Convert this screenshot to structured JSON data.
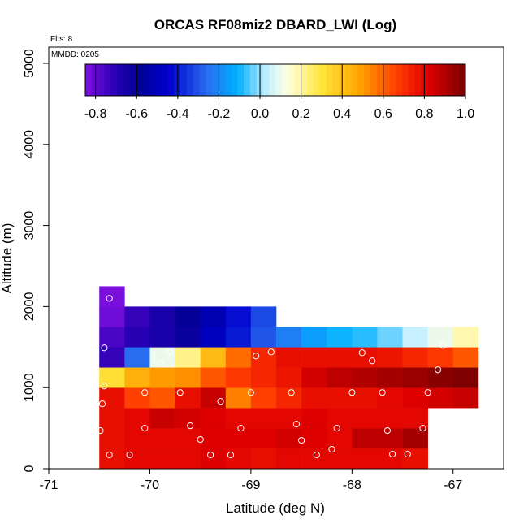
{
  "chart_data": {
    "type": "heatmap",
    "title": "ORCAS RF08miz2 DBARD_LWI (Log)",
    "xlabel": "Latitude (deg N)",
    "ylabel": "Altitude (m)",
    "xlim": [
      -71,
      -66.5
    ],
    "ylim": [
      0,
      5200
    ],
    "x_ticks": [
      -71,
      -70,
      -69,
      -68,
      -67
    ],
    "y_ticks": [
      0,
      1000,
      2000,
      3000,
      4000,
      5000
    ],
    "x_tick_labels": [
      "-71",
      "-70",
      "-69",
      "-68",
      "-67"
    ],
    "y_tick_labels": [
      "0",
      "1000",
      "2000",
      "3000",
      "4000",
      "5000"
    ],
    "annotations": {
      "flights": "Flts: 8",
      "date": "MMDD: 0205"
    },
    "colorbar": {
      "min": -0.85,
      "max": 1.0,
      "ticks": [
        -0.8,
        -0.6,
        -0.4,
        -0.2,
        0.0,
        0.2,
        0.4,
        0.6,
        0.8,
        1.0
      ],
      "tick_labels": [
        "-0.8",
        "-0.6",
        "-0.4",
        "-0.2",
        "0.0",
        "0.2",
        "0.4",
        "0.6",
        "0.8",
        "1.0"
      ]
    },
    "bin_width_deg": 0.25,
    "bin_height_m": 250,
    "columns_lat_start": [
      -70.5,
      -70.25,
      -70.0,
      -69.75,
      -69.5,
      -69.25,
      -69.0,
      -68.75,
      -68.5,
      -68.25,
      -68.0,
      -67.75,
      -67.5,
      -67.25,
      -67.0
    ],
    "rows_alt_start": [
      0,
      250,
      500,
      750,
      1000,
      1250,
      1500,
      1750,
      2000
    ],
    "cells": [
      {
        "row": 0,
        "values": [
          0.78,
          0.8,
          0.8,
          0.8,
          0.82,
          0.8,
          0.78,
          0.8,
          0.8,
          0.8,
          0.8,
          0.8,
          0.78,
          null,
          null
        ]
      },
      {
        "row": 1,
        "values": [
          0.78,
          0.8,
          0.8,
          0.8,
          0.82,
          0.82,
          0.82,
          0.84,
          0.82,
          0.8,
          0.88,
          0.88,
          0.92,
          null,
          null
        ]
      },
      {
        "row": 2,
        "values": [
          0.78,
          0.8,
          0.86,
          0.84,
          0.82,
          0.8,
          0.8,
          0.8,
          0.82,
          0.8,
          0.8,
          0.8,
          0.8,
          null,
          null
        ]
      },
      {
        "row": 3,
        "values": [
          0.78,
          0.66,
          0.62,
          0.78,
          0.86,
          0.55,
          0.66,
          0.72,
          0.78,
          0.78,
          0.78,
          0.8,
          0.82,
          0.84,
          0.86
        ]
      },
      {
        "row": 4,
        "values": [
          0.32,
          0.45,
          0.5,
          0.52,
          0.62,
          0.68,
          0.72,
          0.76,
          0.84,
          0.88,
          0.9,
          0.92,
          0.94,
          0.97,
          0.99
        ]
      },
      {
        "row": 5,
        "values": [
          -0.72,
          -0.26,
          0.1,
          0.22,
          0.42,
          0.58,
          0.72,
          0.78,
          0.78,
          0.78,
          0.78,
          0.76,
          0.72,
          0.68,
          0.62
        ]
      },
      {
        "row": 6,
        "values": [
          -0.76,
          -0.7,
          -0.66,
          -0.62,
          -0.48,
          -0.4,
          -0.3,
          -0.22,
          -0.15,
          -0.1,
          -0.08,
          -0.03,
          0.04,
          0.1,
          0.18
        ]
      },
      {
        "row": 7,
        "values": [
          -0.82,
          -0.72,
          -0.66,
          -0.6,
          -0.52,
          -0.42,
          -0.32,
          null,
          null,
          null,
          null,
          null,
          null,
          null,
          null
        ]
      },
      {
        "row": 8,
        "values": [
          -0.84,
          null,
          null,
          null,
          null,
          null,
          null,
          null,
          null,
          null,
          null,
          null,
          null,
          null,
          null
        ]
      }
    ],
    "sample_points": [
      [
        -70.4,
        2100
      ],
      [
        -70.45,
        1490
      ],
      [
        -70.45,
        1020
      ],
      [
        -70.47,
        800
      ],
      [
        -70.49,
        470
      ],
      [
        -70.4,
        170
      ],
      [
        -70.2,
        170
      ],
      [
        -70.05,
        500
      ],
      [
        -70.05,
        940
      ],
      [
        -69.9,
        1300
      ],
      [
        -69.8,
        1440
      ],
      [
        -69.7,
        940
      ],
      [
        -69.6,
        530
      ],
      [
        -69.5,
        360
      ],
      [
        -69.4,
        170
      ],
      [
        -69.3,
        830
      ],
      [
        -69.2,
        170
      ],
      [
        -69.1,
        500
      ],
      [
        -69.0,
        940
      ],
      [
        -68.95,
        1390
      ],
      [
        -68.8,
        1440
      ],
      [
        -68.6,
        940
      ],
      [
        -68.55,
        550
      ],
      [
        -68.5,
        350
      ],
      [
        -68.35,
        170
      ],
      [
        -68.2,
        240
      ],
      [
        -68.15,
        500
      ],
      [
        -68.0,
        940
      ],
      [
        -67.9,
        1430
      ],
      [
        -67.8,
        1330
      ],
      [
        -67.7,
        940
      ],
      [
        -67.65,
        470
      ],
      [
        -67.6,
        180
      ],
      [
        -67.45,
        180
      ],
      [
        -67.3,
        500
      ],
      [
        -67.25,
        940
      ],
      [
        -67.15,
        1220
      ],
      [
        -67.1,
        1520
      ]
    ]
  }
}
